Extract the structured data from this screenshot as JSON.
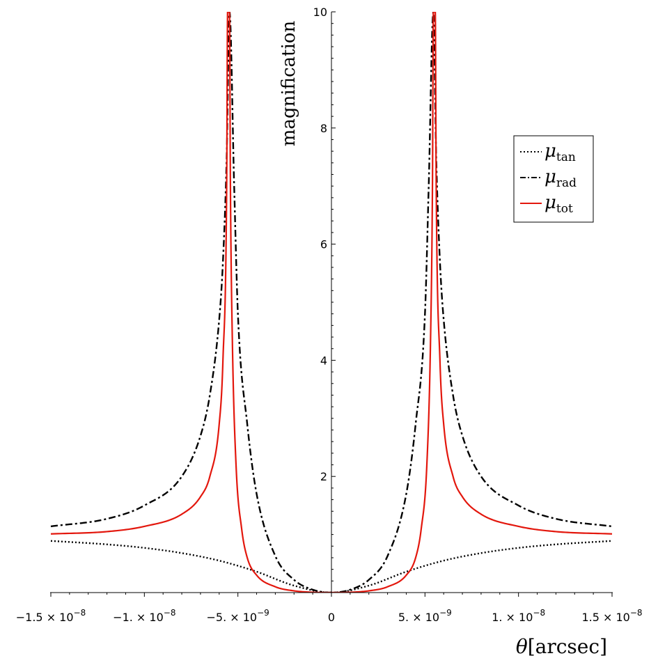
{
  "chart_data": {
    "type": "line",
    "xlabel_symbol": "θ",
    "xlabel_unit": "arcsec",
    "ylabel": "magnification",
    "xlim": [
      -1.52e-08,
      1.52e-08
    ],
    "ylim": [
      0,
      10
    ],
    "grid": false,
    "legend_position": "top-right",
    "x_ticks": [
      {
        "value": -1.5e-08,
        "mantissa": "−1.5",
        "exponent": "−8"
      },
      {
        "value": -1e-08,
        "mantissa": "−1.",
        "exponent": "−8"
      },
      {
        "value": -5e-09,
        "mantissa": "−5.",
        "exponent": "−9"
      },
      {
        "value": 0,
        "mantissa": "0",
        "exponent": ""
      },
      {
        "value": 5e-09,
        "mantissa": "5.",
        "exponent": "−9"
      },
      {
        "value": 1e-08,
        "mantissa": "1.",
        "exponent": "−8"
      },
      {
        "value": 1.5e-08,
        "mantissa": "1.5",
        "exponent": "−8"
      }
    ],
    "y_ticks": [
      {
        "value": 2,
        "label": "2"
      },
      {
        "value": 4,
        "label": "4"
      },
      {
        "value": 6,
        "label": "6"
      },
      {
        "value": 8,
        "label": "8"
      },
      {
        "value": 10,
        "label": "10"
      }
    ],
    "series": [
      {
        "key": "tan",
        "symbol": "μ",
        "subscript": "tan",
        "color": "#000000",
        "dash": "dotted",
        "x": [
          -1.5e-08,
          -1.2e-08,
          -1e-08,
          -8e-09,
          -6e-09,
          -4e-09,
          -2e-09,
          0,
          2e-09,
          4e-09,
          6e-09,
          8e-09,
          1e-08,
          1.2e-08,
          1.5e-08
        ],
        "y": [
          0.89,
          0.83,
          0.77,
          0.68,
          0.55,
          0.36,
          0.12,
          0.0,
          0.12,
          0.36,
          0.55,
          0.68,
          0.77,
          0.83,
          0.89
        ]
      },
      {
        "key": "rad",
        "symbol": "μ",
        "subscript": "rad",
        "color": "#000000",
        "dash": "dashdot",
        "x": [
          -1.5e-08,
          -1.2e-08,
          -1e-08,
          -8e-09,
          -7e-09,
          -6.5e-09,
          -6e-09,
          -5.8e-09,
          -5.6e-09,
          -5.45e-09,
          -5.2e-09,
          -5e-09,
          -4.5e-09,
          -4e-09,
          -3e-09,
          -2e-09,
          -1e-09,
          0,
          1e-09,
          2e-09,
          3e-09,
          4e-09,
          4.5e-09,
          5e-09,
          5.2e-09,
          5.45e-09,
          5.6e-09,
          5.8e-09,
          6e-09,
          6.5e-09,
          7e-09,
          8e-09,
          1e-08,
          1.2e-08,
          1.5e-08
        ],
        "y": [
          1.14,
          1.27,
          1.5,
          2.0,
          2.7,
          3.4,
          4.7,
          5.7,
          7.5,
          10.0,
          7.0,
          4.8,
          2.9,
          1.7,
          0.63,
          0.22,
          0.05,
          0.0,
          0.05,
          0.22,
          0.63,
          1.7,
          2.9,
          4.8,
          7.0,
          10.0,
          7.5,
          5.7,
          4.7,
          3.4,
          2.7,
          2.0,
          1.5,
          1.27,
          1.14
        ]
      },
      {
        "key": "tot",
        "symbol": "μ",
        "subscript": "tot",
        "color": "#e3170d",
        "dash": "solid",
        "x": [
          -1.5e-08,
          -1.2e-08,
          -1e-08,
          -8e-09,
          -7e-09,
          -6.5e-09,
          -6e-09,
          -5.8e-09,
          -5.6e-09,
          -5.55e-09,
          -5.45e-09,
          -5.4e-09,
          -5.3e-09,
          -5.1e-09,
          -4.8e-09,
          -4.5e-09,
          -4e-09,
          -3e-09,
          -2e-09,
          -1e-09,
          0,
          1e-09,
          2e-09,
          3e-09,
          4e-09,
          4.5e-09,
          4.8e-09,
          5.1e-09,
          5.3e-09,
          5.4e-09,
          5.45e-09,
          5.55e-09,
          5.6e-09,
          5.8e-09,
          6e-09,
          6.5e-09,
          7e-09,
          8e-09,
          1e-08,
          1.2e-08,
          1.5e-08
        ],
        "y": [
          1.01,
          1.05,
          1.14,
          1.35,
          1.65,
          2.0,
          2.9,
          4.0,
          7.0,
          10.0,
          10.0,
          7.0,
          4.4,
          2.2,
          1.1,
          0.6,
          0.3,
          0.1,
          0.03,
          0.005,
          0.0,
          0.005,
          0.03,
          0.1,
          0.3,
          0.6,
          1.1,
          2.2,
          4.4,
          7.0,
          10.0,
          10.0,
          7.0,
          4.0,
          2.9,
          2.0,
          1.65,
          1.35,
          1.14,
          1.05,
          1.01
        ]
      }
    ]
  }
}
